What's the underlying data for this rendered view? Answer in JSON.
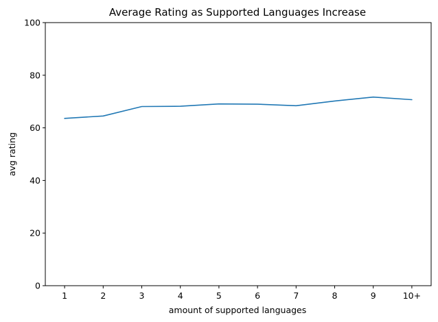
{
  "chart_data": {
    "type": "line",
    "title": "Average Rating as Supported Languages Increase",
    "xlabel": "amount of supported languages",
    "ylabel": "avg rating",
    "categories": [
      "1",
      "2",
      "3",
      "4",
      "5",
      "6",
      "7",
      "8",
      "9",
      "10+"
    ],
    "series": [
      {
        "values": [
          63.6,
          64.5,
          68.1,
          68.2,
          69.1,
          69.0,
          68.4,
          70.2,
          71.7,
          70.7
        ],
        "color": "#1f77b4"
      }
    ],
    "ylim": [
      0,
      100
    ],
    "yticks": [
      0,
      20,
      40,
      60,
      80,
      100
    ],
    "yticklabels": [
      "0",
      "20",
      "40",
      "60",
      "80",
      "100"
    ],
    "grid": false,
    "legend": "none"
  }
}
